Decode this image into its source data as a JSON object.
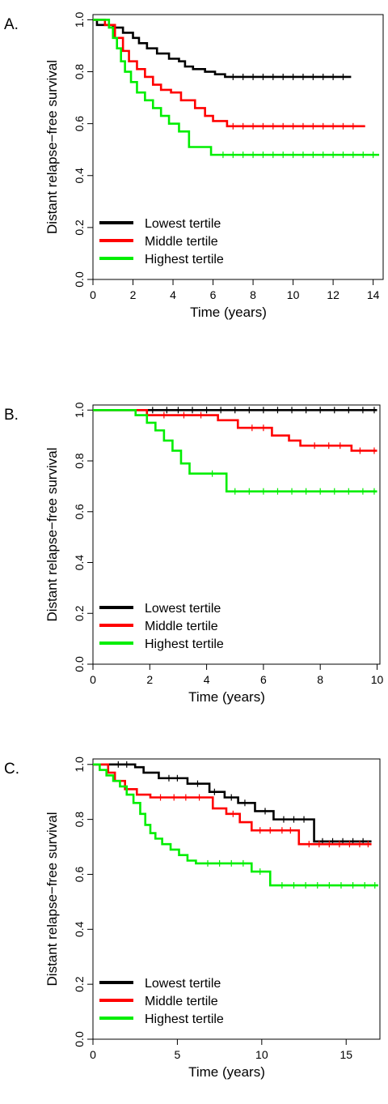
{
  "colors": {
    "lowest": "#000000",
    "middle": "#ff0000",
    "highest": "#00ee00"
  },
  "chart_data": [
    {
      "type": "line",
      "panel_label": "A.",
      "xlabel": "Time (years)",
      "ylabel": "Distant relapse−free survival",
      "xlim": [
        0,
        14.5
      ],
      "ylim": [
        0,
        1.02
      ],
      "xticks": [
        "0",
        "2",
        "4",
        "6",
        "8",
        "10",
        "12",
        "14"
      ],
      "yticks": [
        "0.0",
        "0.2",
        "0.4",
        "0.6",
        "0.8",
        "1.0"
      ],
      "legend": "bottom-left",
      "series": [
        {
          "name": "Lowest tertile",
          "color": "#000000",
          "x": [
            0,
            0.2,
            1.0,
            1.5,
            2.0,
            2.3,
            2.7,
            3.2,
            3.8,
            4.3,
            4.6,
            5.0,
            5.6,
            6.1,
            6.6,
            12.9
          ],
          "y": [
            1.0,
            0.98,
            0.97,
            0.95,
            0.93,
            0.91,
            0.89,
            0.87,
            0.85,
            0.84,
            0.82,
            0.81,
            0.8,
            0.79,
            0.78,
            0.78
          ],
          "cx": [
            7.0,
            7.5,
            8.0,
            8.5,
            9.0,
            9.5,
            10.0,
            10.5,
            11.0,
            11.5,
            12.0,
            12.5
          ]
        },
        {
          "name": "Middle tertile",
          "color": "#ff0000",
          "x": [
            0,
            0.6,
            1.1,
            1.5,
            1.8,
            2.2,
            2.6,
            3.0,
            3.4,
            3.9,
            4.4,
            5.1,
            5.6,
            6.0,
            6.7,
            13.6
          ],
          "y": [
            1.0,
            0.98,
            0.93,
            0.88,
            0.84,
            0.81,
            0.78,
            0.75,
            0.73,
            0.72,
            0.69,
            0.66,
            0.63,
            0.61,
            0.59,
            0.59
          ],
          "cx": [
            7.0,
            7.5,
            8.0,
            8.5,
            9.0,
            9.5,
            10.0,
            10.5,
            11.0,
            11.5,
            12.0,
            12.5,
            13.0
          ]
        },
        {
          "name": "Highest tertile",
          "color": "#00ee00",
          "x": [
            0,
            0.8,
            1.0,
            1.2,
            1.4,
            1.6,
            1.9,
            2.2,
            2.6,
            3.0,
            3.4,
            3.8,
            4.3,
            4.8,
            5.9,
            14.3
          ],
          "y": [
            1.0,
            0.97,
            0.93,
            0.89,
            0.84,
            0.8,
            0.76,
            0.72,
            0.69,
            0.66,
            0.63,
            0.6,
            0.57,
            0.51,
            0.48,
            0.48
          ],
          "cx": [
            6.5,
            7.0,
            7.5,
            8.0,
            8.5,
            9.0,
            9.5,
            10.0,
            10.5,
            11.0,
            11.5,
            12.0,
            12.5,
            13.0,
            13.5,
            14.0
          ]
        }
      ]
    },
    {
      "type": "line",
      "panel_label": "B.",
      "xlabel": "Time (years)",
      "ylabel": "Distant relapse−free survival",
      "xlim": [
        0,
        10.1
      ],
      "ylim": [
        0,
        1.02
      ],
      "xticks": [
        "0",
        "2",
        "4",
        "6",
        "8",
        "10"
      ],
      "yticks": [
        "0.0",
        "0.2",
        "0.4",
        "0.6",
        "0.8",
        "1.0"
      ],
      "legend": "bottom-left",
      "series": [
        {
          "name": "Lowest tertile",
          "color": "#000000",
          "x": [
            0,
            10.0
          ],
          "y": [
            1.0,
            1.0
          ],
          "cx": [
            2.1,
            2.6,
            3.0,
            3.5,
            4.0,
            4.5,
            5.0,
            5.5,
            6.0,
            6.5,
            7.0,
            7.5,
            8.0,
            8.5,
            9.0,
            9.5,
            9.9
          ]
        },
        {
          "name": "Middle tertile",
          "color": "#ff0000",
          "x": [
            0,
            1.9,
            4.4,
            5.1,
            6.3,
            6.9,
            7.3,
            9.1,
            10.0
          ],
          "y": [
            1.0,
            0.98,
            0.96,
            0.93,
            0.9,
            0.88,
            0.86,
            0.84,
            0.84
          ],
          "cx": [
            2.5,
            3.2,
            3.8,
            5.6,
            6.0,
            7.8,
            8.3,
            8.7,
            9.4,
            9.9
          ]
        },
        {
          "name": "Highest tertile",
          "color": "#00ee00",
          "x": [
            0,
            1.5,
            1.9,
            2.2,
            2.5,
            2.8,
            3.1,
            3.4,
            4.7,
            10.0
          ],
          "y": [
            1.0,
            0.98,
            0.95,
            0.92,
            0.88,
            0.84,
            0.79,
            0.75,
            0.68,
            0.68
          ],
          "cx": [
            4.2,
            5.0,
            5.5,
            6.0,
            6.5,
            7.0,
            7.5,
            8.0,
            8.5,
            9.0,
            9.5,
            9.9
          ]
        }
      ]
    },
    {
      "type": "line",
      "panel_label": "C.",
      "xlabel": "Time (years)",
      "ylabel": "Distant relapse−free survival",
      "xlim": [
        0,
        17
      ],
      "ylim": [
        0,
        1.02
      ],
      "xticks": [
        "0",
        "5",
        "10",
        "15"
      ],
      "yticks": [
        "0.0",
        "0.2",
        "0.4",
        "0.6",
        "0.8",
        "1.0"
      ],
      "legend": "bottom-left",
      "series": [
        {
          "name": "Lowest tertile",
          "color": "#000000",
          "x": [
            0,
            2.5,
            3.0,
            3.9,
            5.6,
            6.9,
            7.8,
            8.6,
            9.6,
            10.7,
            13.1,
            16.5
          ],
          "y": [
            1.0,
            0.99,
            0.97,
            0.95,
            0.93,
            0.9,
            0.88,
            0.86,
            0.83,
            0.8,
            0.72,
            0.72
          ],
          "cx": [
            1.5,
            2.0,
            4.5,
            5.0,
            6.2,
            7.2,
            8.2,
            9.0,
            10.2,
            11.3,
            11.9,
            12.5,
            13.6,
            14.2,
            14.8,
            15.4,
            16.0
          ]
        },
        {
          "name": "Middle tertile",
          "color": "#ff0000",
          "x": [
            0,
            0.9,
            1.3,
            1.9,
            2.6,
            3.4,
            7.1,
            7.9,
            8.7,
            9.4,
            12.2,
            16.5
          ],
          "y": [
            1.0,
            0.97,
            0.94,
            0.91,
            0.89,
            0.88,
            0.84,
            0.82,
            0.79,
            0.76,
            0.71,
            0.71
          ],
          "cx": [
            4.0,
            4.8,
            5.5,
            6.3,
            8.3,
            9.9,
            10.5,
            11.2,
            11.7,
            12.8,
            13.4,
            14.0,
            14.6,
            15.2,
            15.8,
            16.3
          ]
        },
        {
          "name": "Highest tertile",
          "color": "#00ee00",
          "x": [
            0,
            0.4,
            0.8,
            1.2,
            1.6,
            2.0,
            2.4,
            2.8,
            3.1,
            3.4,
            3.7,
            4.1,
            4.6,
            5.1,
            5.6,
            6.1,
            9.4,
            10.5,
            16.9
          ],
          "y": [
            1.0,
            0.98,
            0.96,
            0.94,
            0.92,
            0.89,
            0.86,
            0.82,
            0.78,
            0.75,
            0.73,
            0.71,
            0.69,
            0.67,
            0.65,
            0.64,
            0.61,
            0.56,
            0.56
          ],
          "cx": [
            6.8,
            7.5,
            8.2,
            8.9,
            9.9,
            11.2,
            11.9,
            12.6,
            13.3,
            14.0,
            14.7,
            15.4,
            16.1,
            16.7
          ]
        }
      ]
    }
  ]
}
